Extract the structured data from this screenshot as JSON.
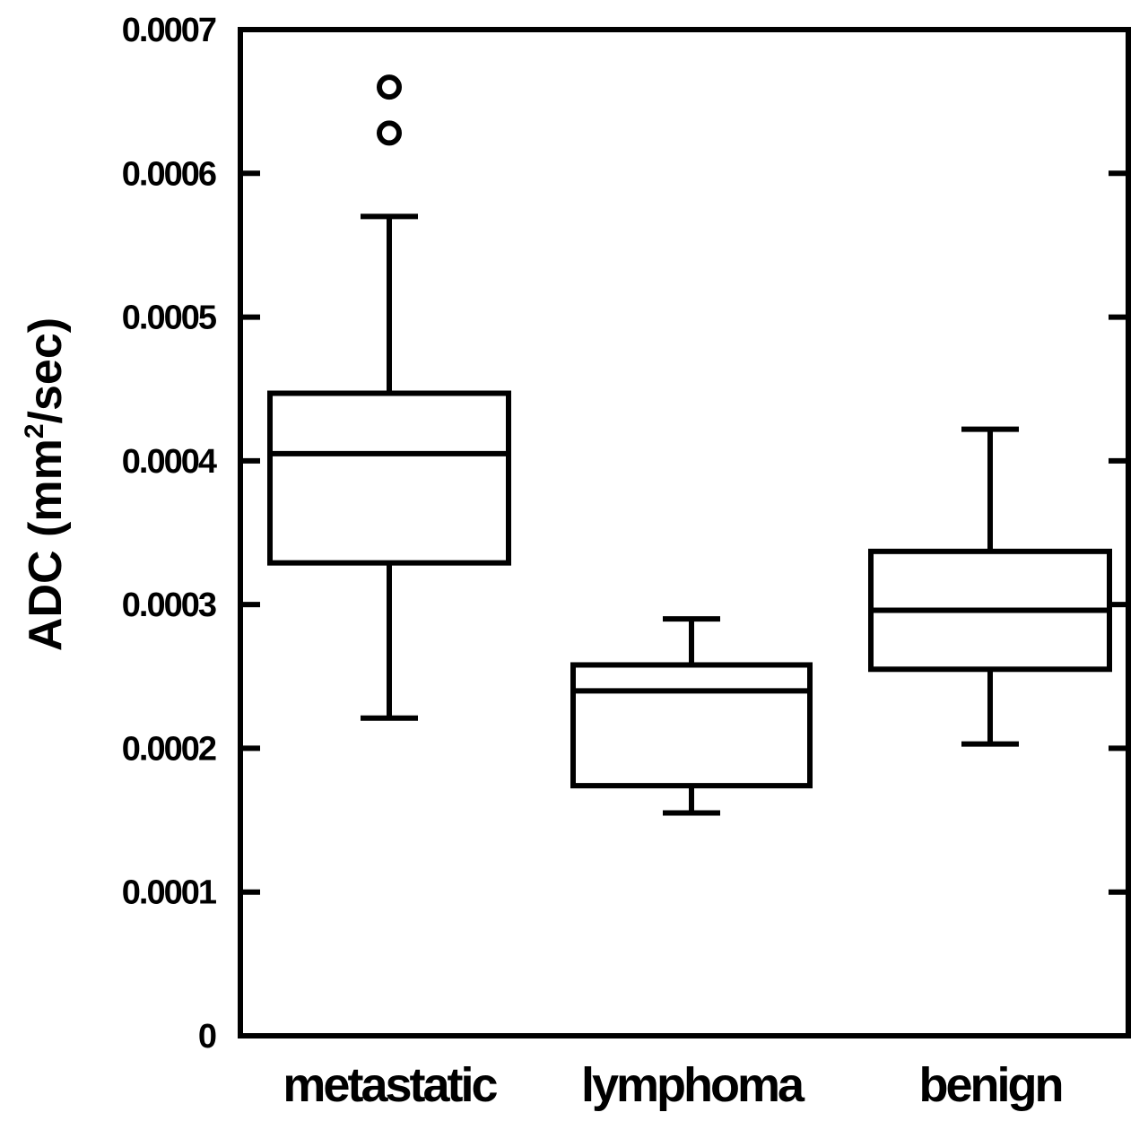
{
  "chart_data": {
    "type": "boxplot",
    "title": "",
    "xlabel": "",
    "ylabel": "ADC (mm2/sec)",
    "ylabel_parts": {
      "prefix": "ADC (mm",
      "superscript": "2",
      "suffix": "/sec)"
    },
    "ylim": [
      0,
      0.0007
    ],
    "yticks": [
      0,
      0.0001,
      0.0002,
      0.0003,
      0.0004,
      0.0005,
      0.0006,
      0.0007
    ],
    "ytick_labels": [
      "0",
      "0.0001",
      "0.0002",
      "0.0003",
      "0.0004",
      "0.0005",
      "0.0006",
      "0.0007"
    ],
    "grid": false,
    "categories": [
      "metastatic",
      "lymphoma",
      "benign"
    ],
    "series": [
      {
        "name": "metastatic",
        "whisker_low": 0.000221,
        "q1": 0.000329,
        "median": 0.000405,
        "q3": 0.000447,
        "whisker_high": 0.00057,
        "outliers": [
          0.00066,
          0.000628
        ]
      },
      {
        "name": "lymphoma",
        "whisker_low": 0.000155,
        "q1": 0.000174,
        "median": 0.00024,
        "q3": 0.000258,
        "whisker_high": 0.00029,
        "outliers": []
      },
      {
        "name": "benign",
        "whisker_low": 0.000203,
        "q1": 0.000255,
        "median": 0.000296,
        "q3": 0.000337,
        "whisker_high": 0.000422,
        "outliers": []
      }
    ],
    "colors": {
      "stroke": "#000000",
      "background": "#ffffff"
    }
  }
}
